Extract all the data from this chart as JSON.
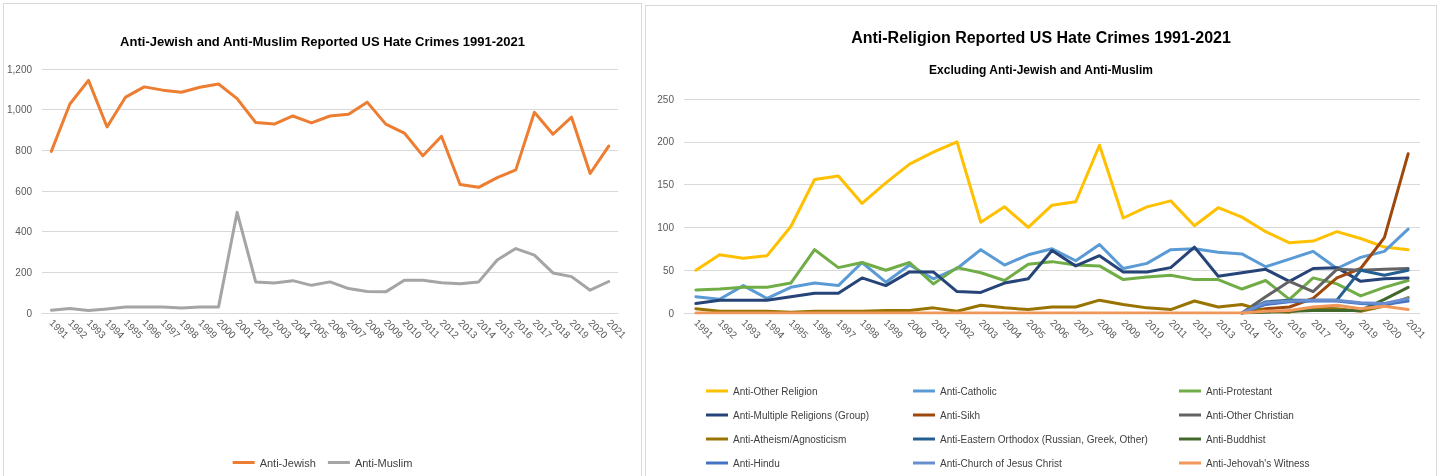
{
  "chart_data": [
    {
      "type": "line",
      "title": "Anti-Jewish and Anti-Muslim Reported US Hate Crimes 1991-2021",
      "categories": [
        "1991",
        "1992",
        "1993",
        "1994",
        "1995",
        "1996",
        "1997",
        "1998",
        "1999",
        "2000",
        "2001",
        "2002",
        "2003",
        "2004",
        "2005",
        "2006",
        "2007",
        "2008",
        "2009",
        "2010",
        "2011",
        "2012",
        "2013",
        "2014",
        "2015",
        "2016",
        "2017",
        "2018",
        "2019",
        "2020",
        "2021"
      ],
      "series": [
        {
          "name": "Anti-Jewish",
          "color": "#ed7d31",
          "values": [
            795,
            1028,
            1144,
            915,
            1062,
            1112,
            1096,
            1086,
            1110,
            1126,
            1054,
            937,
            929,
            969,
            935,
            969,
            977,
            1037,
            929,
            885,
            773,
            869,
            632,
            618,
            666,
            704,
            987,
            879,
            963,
            686,
            821
          ]
        },
        {
          "name": "Anti-Muslim",
          "color": "#a5a5a5",
          "values": [
            14,
            22,
            12,
            20,
            30,
            30,
            30,
            24,
            30,
            30,
            495,
            153,
            148,
            159,
            136,
            153,
            120,
            106,
            104,
            161,
            161,
            149,
            144,
            153,
            261,
            317,
            285,
            197,
            179,
            112,
            155
          ]
        }
      ],
      "ylim": [
        0,
        1200
      ],
      "yticks": [
        0,
        200,
        400,
        600,
        800,
        {
          "value": 1000,
          "label": "1,000"
        },
        {
          "value": 1200,
          "label": "1,200"
        }
      ],
      "grid": "y",
      "legend": "bottom",
      "marker": "none"
    },
    {
      "type": "line",
      "title": "Anti-Religion Reported US Hate Crimes 1991-2021",
      "subtitle": "Excluding Anti-Jewish and Anti-Muslim",
      "categories": [
        "1991",
        "1992",
        "1993",
        "1994",
        "1995",
        "1996",
        "1997",
        "1998",
        "1999",
        "2000",
        "2001",
        "2002",
        "2003",
        "2004",
        "2005",
        "2006",
        "2007",
        "2008",
        "2009",
        "2010",
        "2011",
        "2012",
        "2013",
        "2014",
        "2015",
        "2016",
        "2017",
        "2018",
        "2019",
        "2020",
        "2021"
      ],
      "series": [
        {
          "name": "Anti-Other Religion",
          "color": "#ffc000",
          "values": [
            50,
            68,
            64,
            67,
            101,
            156,
            160,
            128,
            152,
            174,
            188,
            200,
            106,
            124,
            100,
            126,
            130,
            196,
            111,
            124,
            131,
            102,
            123,
            112,
            95,
            82,
            84,
            95,
            87,
            77,
            74
          ]
        },
        {
          "name": "Anti-Catholic",
          "color": "#5b9bd5",
          "values": [
            19,
            16,
            32,
            17,
            30,
            35,
            32,
            59,
            36,
            56,
            40,
            52,
            74,
            56,
            68,
            75,
            61,
            80,
            52,
            58,
            74,
            75,
            71,
            69,
            54,
            63,
            72,
            52,
            65,
            72,
            98
          ]
        },
        {
          "name": "Anti-Protestant",
          "color": "#70ad47",
          "values": [
            27,
            28,
            30,
            30,
            35,
            74,
            53,
            59,
            50,
            59,
            34,
            53,
            47,
            38,
            57,
            60,
            56,
            55,
            39,
            42,
            44,
            39,
            39,
            28,
            38,
            16,
            41,
            34,
            20,
            30,
            38
          ]
        },
        {
          "name": "Anti-Multiple Religions (Group)",
          "color": "#264478",
          "values": [
            11,
            15,
            15,
            15,
            19,
            23,
            23,
            41,
            32,
            48,
            48,
            25,
            24,
            35,
            40,
            73,
            55,
            67,
            48,
            48,
            53,
            77,
            43,
            47,
            51,
            37,
            52,
            53,
            37,
            40,
            41
          ]
        },
        {
          "name": "Anti-Sikh",
          "color": "#9e480e",
          "values": [
            null,
            null,
            null,
            null,
            null,
            null,
            null,
            null,
            null,
            null,
            null,
            null,
            null,
            null,
            null,
            null,
            null,
            null,
            null,
            null,
            null,
            null,
            null,
            0,
            5,
            7,
            17,
            41,
            52,
            88,
            186
          ]
        },
        {
          "name": "Anti-Other Christian",
          "color": "#636363",
          "values": [
            null,
            null,
            null,
            null,
            null,
            null,
            null,
            null,
            null,
            null,
            null,
            null,
            null,
            null,
            null,
            null,
            null,
            null,
            null,
            null,
            null,
            null,
            null,
            0,
            19,
            37,
            25,
            51,
            50,
            51,
            52
          ]
        },
        {
          "name": "Anti-Atheism/Agnosticism",
          "color": "#997300",
          "values": [
            5,
            2,
            2,
            2,
            1,
            2,
            2,
            2,
            3,
            3,
            6,
            2,
            9,
            6,
            4,
            7,
            7,
            15,
            10,
            6,
            4,
            14,
            7,
            10,
            2,
            1,
            6,
            5,
            2,
            8,
            18
          ]
        },
        {
          "name": "Anti-Eastern Orthodox (Russian, Greek, Other)",
          "color": "#255e91",
          "values": [
            null,
            null,
            null,
            null,
            null,
            null,
            null,
            null,
            null,
            null,
            null,
            null,
            null,
            null,
            null,
            null,
            null,
            null,
            null,
            null,
            null,
            null,
            null,
            0,
            13,
            15,
            15,
            15,
            50,
            44,
            50
          ]
        },
        {
          "name": "Anti-Buddhist",
          "color": "#43682b",
          "values": [
            null,
            null,
            null,
            null,
            null,
            null,
            null,
            null,
            null,
            null,
            null,
            null,
            null,
            null,
            null,
            null,
            null,
            null,
            null,
            null,
            null,
            null,
            null,
            0,
            1,
            2,
            3,
            3,
            3,
            16,
            30
          ]
        },
        {
          "name": "Anti-Hindu",
          "color": "#4472c4",
          "values": [
            null,
            null,
            null,
            null,
            null,
            null,
            null,
            null,
            null,
            null,
            null,
            null,
            null,
            null,
            null,
            null,
            null,
            null,
            null,
            null,
            null,
            null,
            null,
            0,
            10,
            13,
            14,
            14,
            11,
            10,
            14
          ]
        },
        {
          "name": "Anti-Church of Jesus Christ",
          "color": "#698ed0",
          "values": [
            null,
            null,
            null,
            null,
            null,
            null,
            null,
            null,
            null,
            null,
            null,
            null,
            null,
            null,
            null,
            null,
            null,
            null,
            null,
            null,
            null,
            null,
            null,
            0,
            12,
            14,
            15,
            15,
            12,
            11,
            17
          ]
        },
        {
          "name": "Anti-Jehovah's Witness",
          "color": "#f1975a",
          "values": [
            0,
            0,
            0,
            0,
            0,
            0,
            0,
            0,
            0,
            0,
            0,
            0,
            0,
            0,
            0,
            0,
            0,
            0,
            0,
            0,
            0,
            0,
            0,
            0,
            2,
            3,
            7,
            9,
            5,
            8,
            4
          ]
        }
      ],
      "ylim": [
        0,
        250
      ],
      "yticks": [
        0,
        50,
        100,
        150,
        200,
        250
      ],
      "grid": "y",
      "legend": "bottom",
      "marker": "none"
    }
  ]
}
